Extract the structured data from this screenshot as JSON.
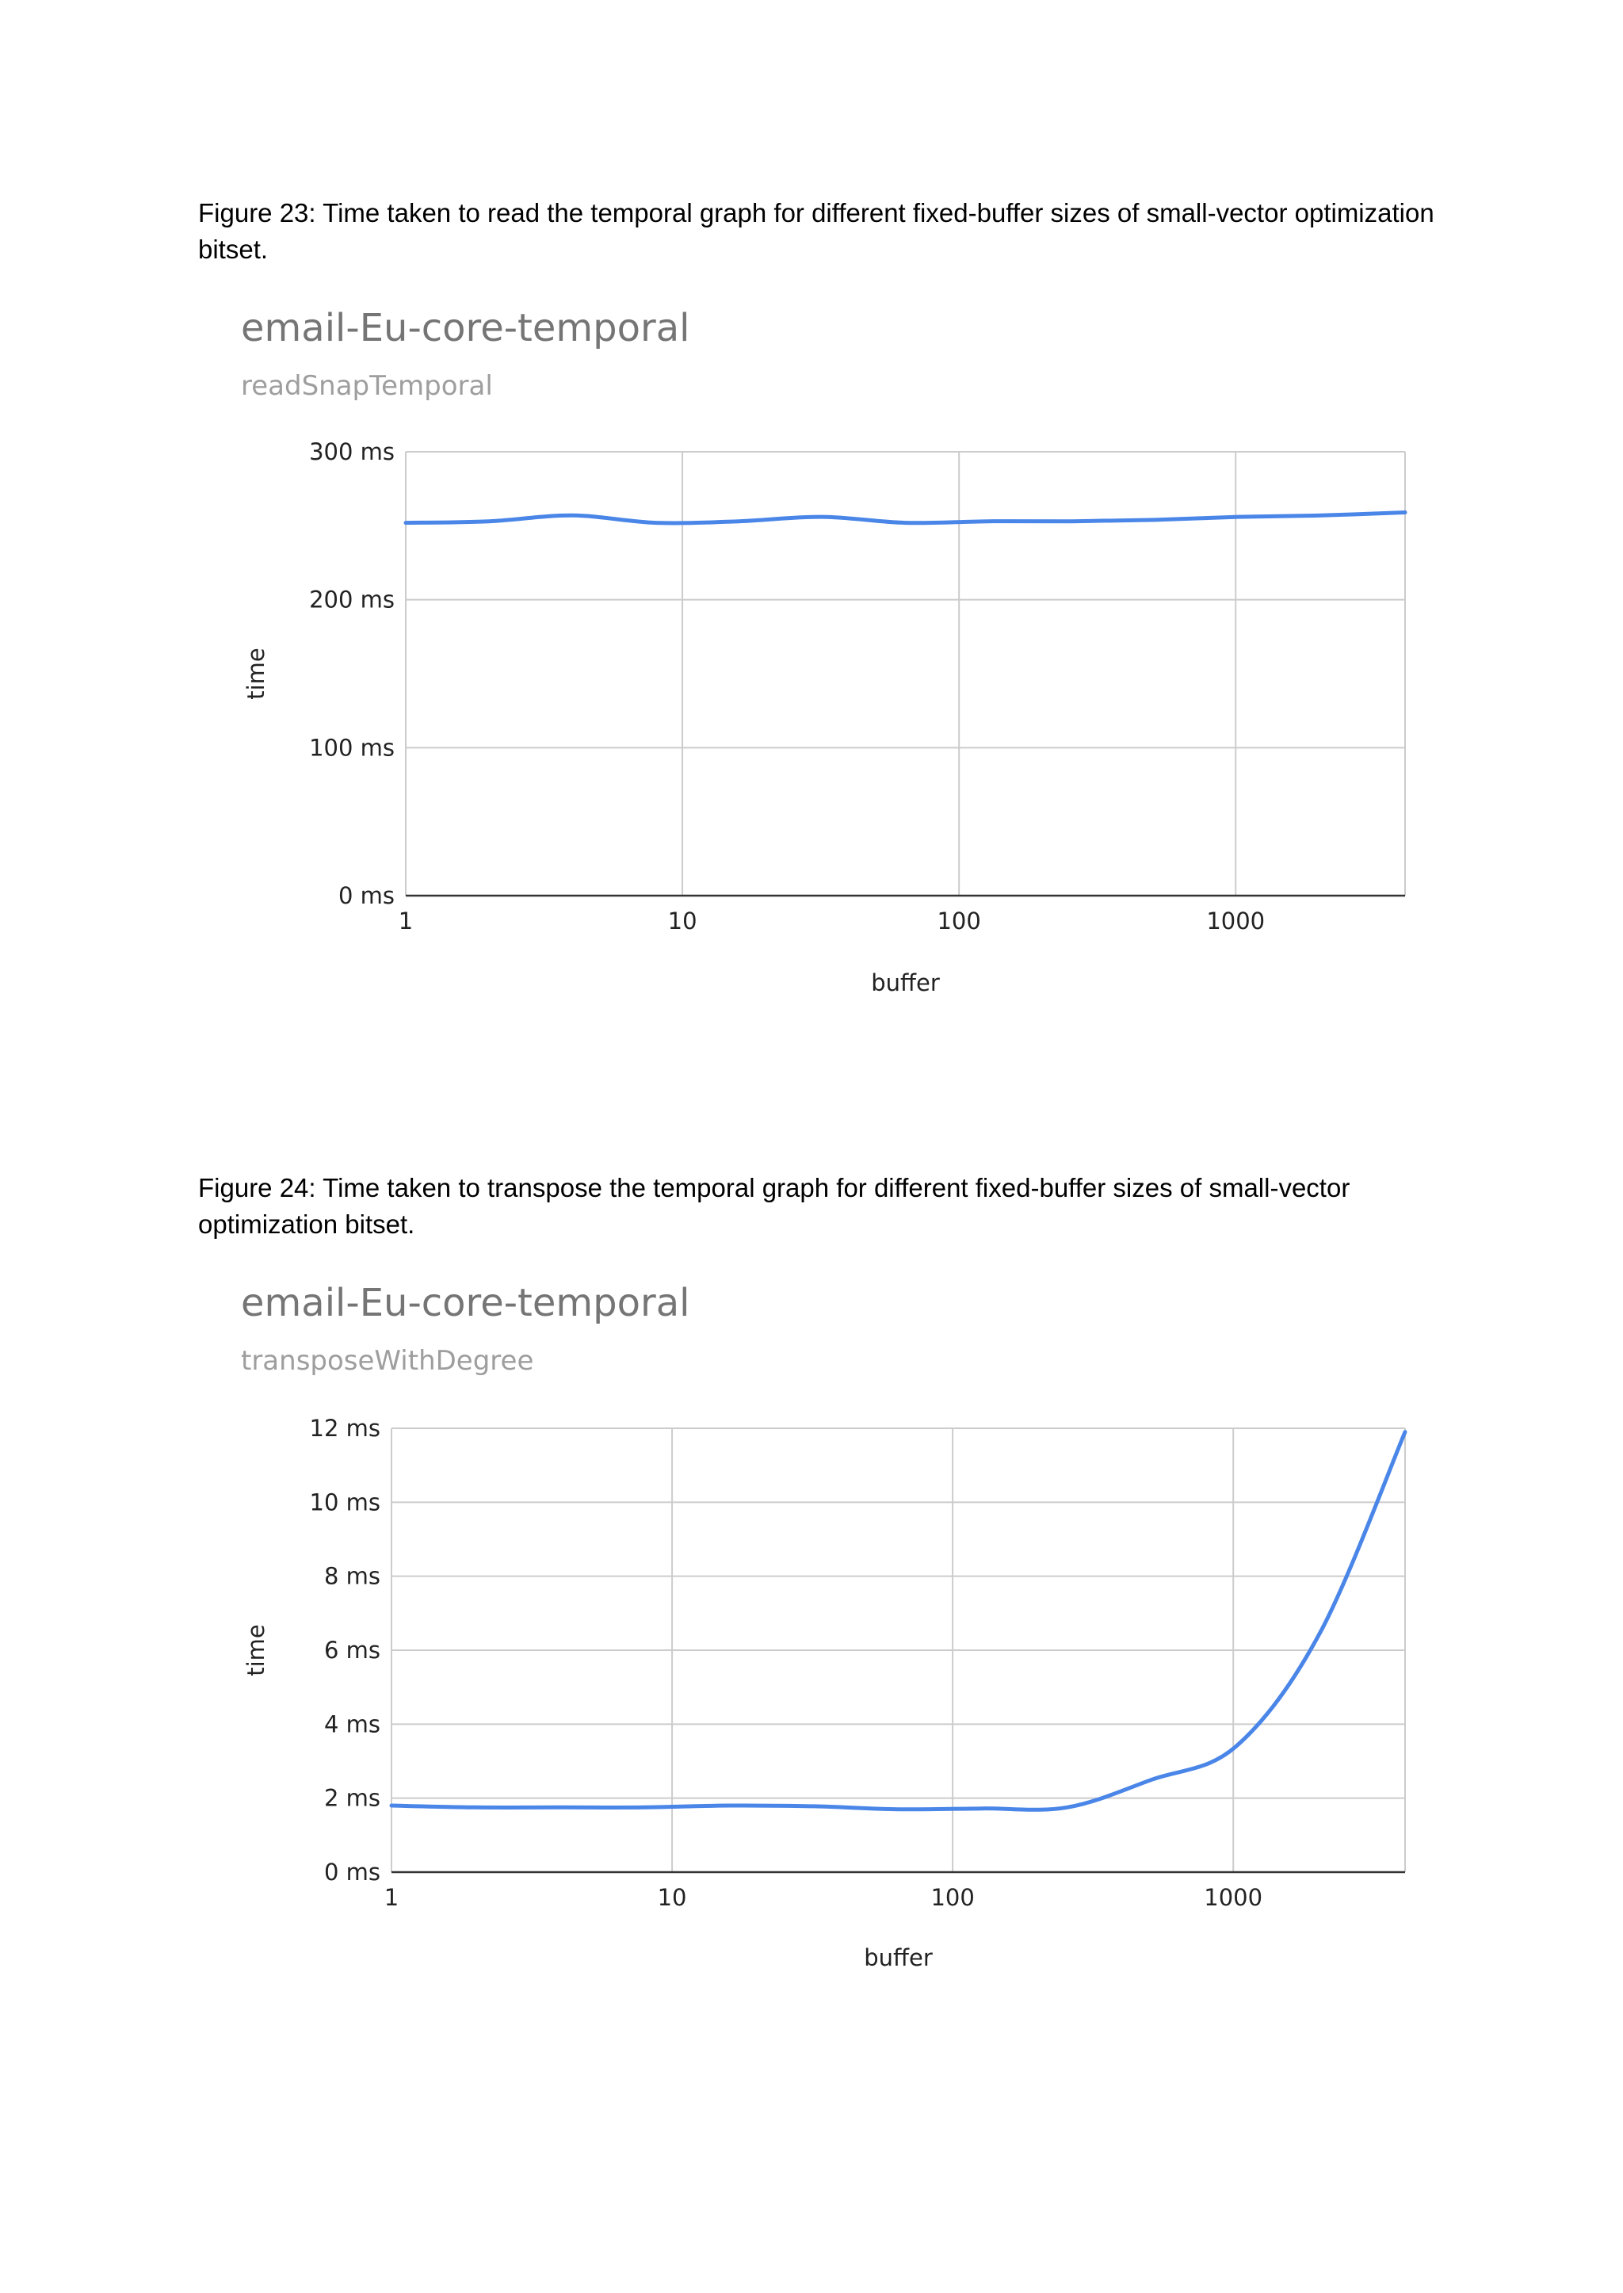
{
  "captions": [
    "Figure 23: Time taken to read the temporal graph for different fixed-buffer sizes of small-vector optimization bitset.",
    "Figure 24: Time taken to transpose the temporal graph for different fixed-buffer sizes of small-vector optimization bitset."
  ],
  "colors": {
    "series": "#4a86e8"
  },
  "chart_data": [
    {
      "type": "line",
      "title": "email-Eu-core-temporal",
      "subtitle": "readSnapTemporal",
      "xlabel": "buffer",
      "ylabel": "time",
      "xscale": "log",
      "xlim": [
        1,
        4096
      ],
      "ylim": [
        0,
        300
      ],
      "x_ticks": [
        1,
        10,
        100,
        1000
      ],
      "x_tick_labels": [
        "1",
        "10",
        "100",
        "1000"
      ],
      "y_ticks": [
        0,
        100,
        200,
        300
      ],
      "y_tick_labels": [
        "0 ms",
        "100 ms",
        "200 ms",
        "300 ms"
      ],
      "grid": true,
      "legend": "none",
      "x": [
        1,
        2,
        4,
        8,
        16,
        32,
        64,
        128,
        256,
        512,
        1024,
        2048,
        4096
      ],
      "y": [
        252,
        253,
        257,
        252,
        253,
        256,
        252,
        253,
        253,
        254,
        256,
        257,
        259
      ]
    },
    {
      "type": "line",
      "title": "email-Eu-core-temporal",
      "subtitle": "transposeWithDegree",
      "xlabel": "buffer",
      "ylabel": "time",
      "xscale": "log",
      "xlim": [
        1,
        4096
      ],
      "ylim": [
        0,
        12
      ],
      "x_ticks": [
        1,
        10,
        100,
        1000
      ],
      "x_tick_labels": [
        "1",
        "10",
        "100",
        "1000"
      ],
      "y_ticks": [
        0,
        2,
        4,
        6,
        8,
        10,
        12
      ],
      "y_tick_labels": [
        "0 ms",
        "2 ms",
        "4 ms",
        "6 ms",
        "8 ms",
        "10 ms",
        "12 ms"
      ],
      "grid": true,
      "legend": "none",
      "x": [
        1,
        2,
        4,
        8,
        16,
        32,
        64,
        128,
        256,
        512,
        1024,
        2048,
        4096
      ],
      "y": [
        1.8,
        1.75,
        1.75,
        1.75,
        1.8,
        1.78,
        1.7,
        1.72,
        1.75,
        2.5,
        3.4,
        6.5,
        11.9
      ]
    }
  ]
}
